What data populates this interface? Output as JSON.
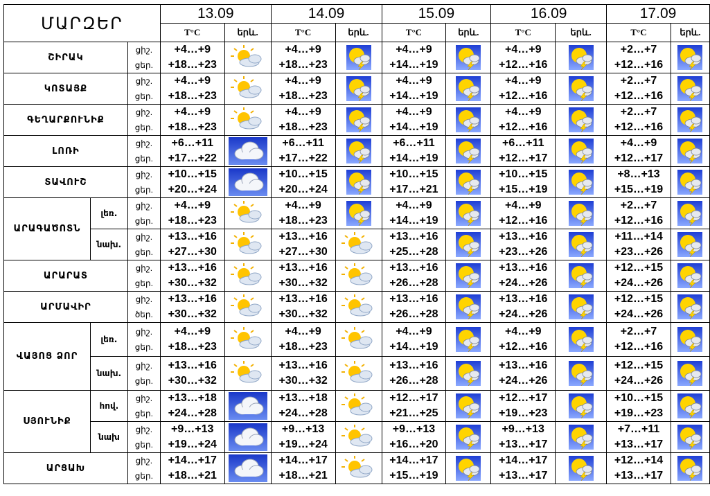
{
  "header": {
    "title": "ՄԱՐԶԵՐ",
    "dates": [
      "13.09",
      "14.09",
      "15.09",
      "16.09",
      "17.09"
    ],
    "temp_label": "T°C",
    "weather_label": "երև."
  },
  "day_label": "ցիշ.",
  "night_label": "ցեր.",
  "rows": [
    {
      "region": "ՇԻՐԱԿ",
      "sub": "",
      "night_label": "ցեր.",
      "days": [
        {
          "n": "+4…+9",
          "d": "+18…+23",
          "icon": "partly-cloudy"
        },
        {
          "n": "+4…+9",
          "d": "+18…+23",
          "icon": "sun-cloud-thunder"
        },
        {
          "n": "+4…+9",
          "d": "+14…+19",
          "icon": "sun-cloud-thunder"
        },
        {
          "n": "+4…+9",
          "d": "+12…+16",
          "icon": "sun-cloud-thunder"
        },
        {
          "n": "+2…+7",
          "d": "+12…+16",
          "icon": "sun-cloud-thunder"
        }
      ]
    },
    {
      "region": "ԿՈՏԱՅՔ",
      "sub": "",
      "night_label": "ցեր.",
      "days": [
        {
          "n": "+4…+9",
          "d": "+18…+23",
          "icon": "partly-cloudy"
        },
        {
          "n": "+4…+9",
          "d": "+18…+23",
          "icon": "sun-cloud-thunder"
        },
        {
          "n": "+4…+9",
          "d": "+14…+19",
          "icon": "sun-cloud-thunder"
        },
        {
          "n": "+4…+9",
          "d": "+12…+16",
          "icon": "sun-cloud-thunder"
        },
        {
          "n": "+2…+7",
          "d": "+12…+16",
          "icon": "sun-cloud-thunder"
        }
      ]
    },
    {
      "region": "ԳԵՂԱՐՔՈՒՆԻՔ",
      "sub": "",
      "night_label": "ցեր.",
      "days": [
        {
          "n": "+4…+9",
          "d": "+18…+23",
          "icon": "partly-cloudy"
        },
        {
          "n": "+4…+9",
          "d": "+18…+23",
          "icon": "sun-cloud-thunder"
        },
        {
          "n": "+4…+9",
          "d": "+14…+19",
          "icon": "sun-cloud-thunder"
        },
        {
          "n": "+4…+9",
          "d": "+12…+16",
          "icon": "sun-cloud-thunder"
        },
        {
          "n": "+2…+7",
          "d": "+12…+16",
          "icon": "sun-cloud-thunder"
        }
      ]
    },
    {
      "region": "ԼՈՌԻ",
      "sub": "",
      "night_label": "ցեր.",
      "days": [
        {
          "n": "+6…+11",
          "d": "+17…+22",
          "icon": "cloudy"
        },
        {
          "n": "+6…+11",
          "d": "+17…+22",
          "icon": "sun-cloud-thunder"
        },
        {
          "n": "+6…+11",
          "d": "+14…+19",
          "icon": "sun-cloud-thunder"
        },
        {
          "n": "+6…+11",
          "d": "+12…+17",
          "icon": "sun-cloud-thunder"
        },
        {
          "n": "+4…+9",
          "d": "+12…+17",
          "icon": "sun-cloud-thunder"
        }
      ]
    },
    {
      "region": "ՏԱՎՈՒՇ",
      "sub": "",
      "night_label": "ցեր.",
      "days": [
        {
          "n": "+10…+15",
          "d": "+20…+24",
          "icon": "cloudy"
        },
        {
          "n": "+10…+15",
          "d": "+20…+24",
          "icon": "sun-cloud-thunder"
        },
        {
          "n": "+10…+15",
          "d": "+17…+21",
          "icon": "sun-cloud-thunder"
        },
        {
          "n": "+10…+15",
          "d": "+15…+19",
          "icon": "sun-cloud-thunder"
        },
        {
          "n": "+8…+13",
          "d": "+15…+19",
          "icon": "sun-cloud-thunder"
        }
      ]
    },
    {
      "region": "ԱՐԱԳԱԾՈՏՆ",
      "sub": "լեռ.",
      "night_label": "ցեր.",
      "days": [
        {
          "n": "+4…+9",
          "d": "+18…+23",
          "icon": "partly-cloudy"
        },
        {
          "n": "+4…+9",
          "d": "+18…+23",
          "icon": "sun-cloud-thunder"
        },
        {
          "n": "+4…+9",
          "d": "+14…+19",
          "icon": "sun-cloud-thunder"
        },
        {
          "n": "+4…+9",
          "d": "+12…+16",
          "icon": "sun-cloud-thunder"
        },
        {
          "n": "+2…+7",
          "d": "+12…+16",
          "icon": "sun-cloud-thunder"
        }
      ]
    },
    {
      "region": "",
      "sub": "նախ.",
      "night_label": "ցեր.",
      "days": [
        {
          "n": "+13…+16",
          "d": "+27…+30",
          "icon": "partly-cloudy"
        },
        {
          "n": "+13…+16",
          "d": "+27…+30",
          "icon": "partly-cloudy"
        },
        {
          "n": "+13…+16",
          "d": "+25…+28",
          "icon": "sun-cloud-thunder"
        },
        {
          "n": "+13…+16",
          "d": "+23…+26",
          "icon": "sun-cloud-thunder"
        },
        {
          "n": "+11…+14",
          "d": "+23…+26",
          "icon": "sun-cloud-thunder"
        }
      ]
    },
    {
      "region": "ԱՐԱՐԱՏ",
      "sub": "",
      "night_label": "ցեր.",
      "days": [
        {
          "n": "+13…+16",
          "d": "+30…+32",
          "icon": "partly-cloudy"
        },
        {
          "n": "+13…+16",
          "d": "+30…+32",
          "icon": "partly-cloudy"
        },
        {
          "n": "+13…+16",
          "d": "+26…+28",
          "icon": "sun-cloud-thunder"
        },
        {
          "n": "+13…+16",
          "d": "+24…+26",
          "icon": "sun-cloud-thunder"
        },
        {
          "n": "+12…+15",
          "d": "+24…+26",
          "icon": "sun-cloud-thunder"
        }
      ]
    },
    {
      "region": "ԱՐՄԱՎԻՐ",
      "sub": "",
      "night_label": "ծեր.",
      "days": [
        {
          "n": "+13…+16",
          "d": "+30…+32",
          "icon": "partly-cloudy"
        },
        {
          "n": "+13…+16",
          "d": "+30…+32",
          "icon": "partly-cloudy"
        },
        {
          "n": "+13…+16",
          "d": "+26…+28",
          "icon": "sun-cloud-thunder"
        },
        {
          "n": "+13…+16",
          "d": "+24…+26",
          "icon": "sun-cloud-thunder"
        },
        {
          "n": "+12…+15",
          "d": "+24…+26",
          "icon": "sun-cloud-thunder"
        }
      ]
    },
    {
      "region": "ՎԱՅՈՑ ՁՈՐ",
      "sub": "լեռ.",
      "night_label": "ցեր.",
      "days": [
        {
          "n": "+4…+9",
          "d": "+18…+23",
          "icon": "partly-cloudy"
        },
        {
          "n": "+4…+9",
          "d": "+18…+23",
          "icon": "partly-cloudy"
        },
        {
          "n": "+4…+9",
          "d": "+14…+19",
          "icon": "sun-cloud-thunder"
        },
        {
          "n": "+4…+9",
          "d": "+12…+16",
          "icon": "sun-cloud-thunder"
        },
        {
          "n": "+2…+7",
          "d": "+12…+16",
          "icon": "sun-cloud-thunder"
        }
      ]
    },
    {
      "region": "",
      "sub": "նախ.",
      "night_label": "ցեր.",
      "days": [
        {
          "n": "+13…+16",
          "d": "+30…+32",
          "icon": "partly-cloudy"
        },
        {
          "n": "+13…+16",
          "d": "+30…+32",
          "icon": "partly-cloudy"
        },
        {
          "n": "+13…+16",
          "d": "+26…+28",
          "icon": "sun-cloud-thunder"
        },
        {
          "n": "+13…+16",
          "d": "+24…+26",
          "icon": "sun-cloud-thunder"
        },
        {
          "n": "+12…+15",
          "d": "+24…+26",
          "icon": "sun-cloud-thunder"
        }
      ]
    },
    {
      "region": "ՍՅՈՒՆԻՔ",
      "sub": "հով.",
      "night_label": "ցեր.",
      "days": [
        {
          "n": "+13…+18",
          "d": "+24…+28",
          "icon": "cloudy"
        },
        {
          "n": "+13…+18",
          "d": "+24…+28",
          "icon": "partly-cloudy"
        },
        {
          "n": "+12…+17",
          "d": "+21…+25",
          "icon": "sun-cloud-thunder"
        },
        {
          "n": "+12…+17",
          "d": "+19…+23",
          "icon": "sun-cloud-thunder"
        },
        {
          "n": "+10…+15",
          "d": "+19…+23",
          "icon": "sun-cloud-thunder"
        }
      ]
    },
    {
      "region": "",
      "sub": "նախ",
      "night_label": "ցեր.",
      "days": [
        {
          "n": "+9…+13",
          "d": "+19…+24",
          "icon": "cloudy"
        },
        {
          "n": "+9…+13",
          "d": "+19…+24",
          "icon": "partly-cloudy"
        },
        {
          "n": "+9…+13",
          "d": "+16…+20",
          "icon": "sun-cloud-thunder"
        },
        {
          "n": "+9…+13",
          "d": "+13…+17",
          "icon": "sun-cloud-thunder"
        },
        {
          "n": "+7…+11",
          "d": "+13…+17",
          "icon": "sun-cloud-thunder"
        }
      ]
    },
    {
      "region": "ԱՐՑԱԽ",
      "sub": "",
      "night_label": "ցեր.",
      "days": [
        {
          "n": "+14…+17",
          "d": "+18…+21",
          "icon": "cloudy"
        },
        {
          "n": "+14…+17",
          "d": "+18…+21",
          "icon": "partly-cloudy"
        },
        {
          "n": "+14…+17",
          "d": "+15…+19",
          "icon": "sun-cloud-thunder"
        },
        {
          "n": "+14…+17",
          "d": "+13…+17",
          "icon": "sun-cloud-thunder"
        },
        {
          "n": "+12…+14",
          "d": "+13…+17",
          "icon": "sun-cloud-thunder"
        }
      ]
    }
  ]
}
